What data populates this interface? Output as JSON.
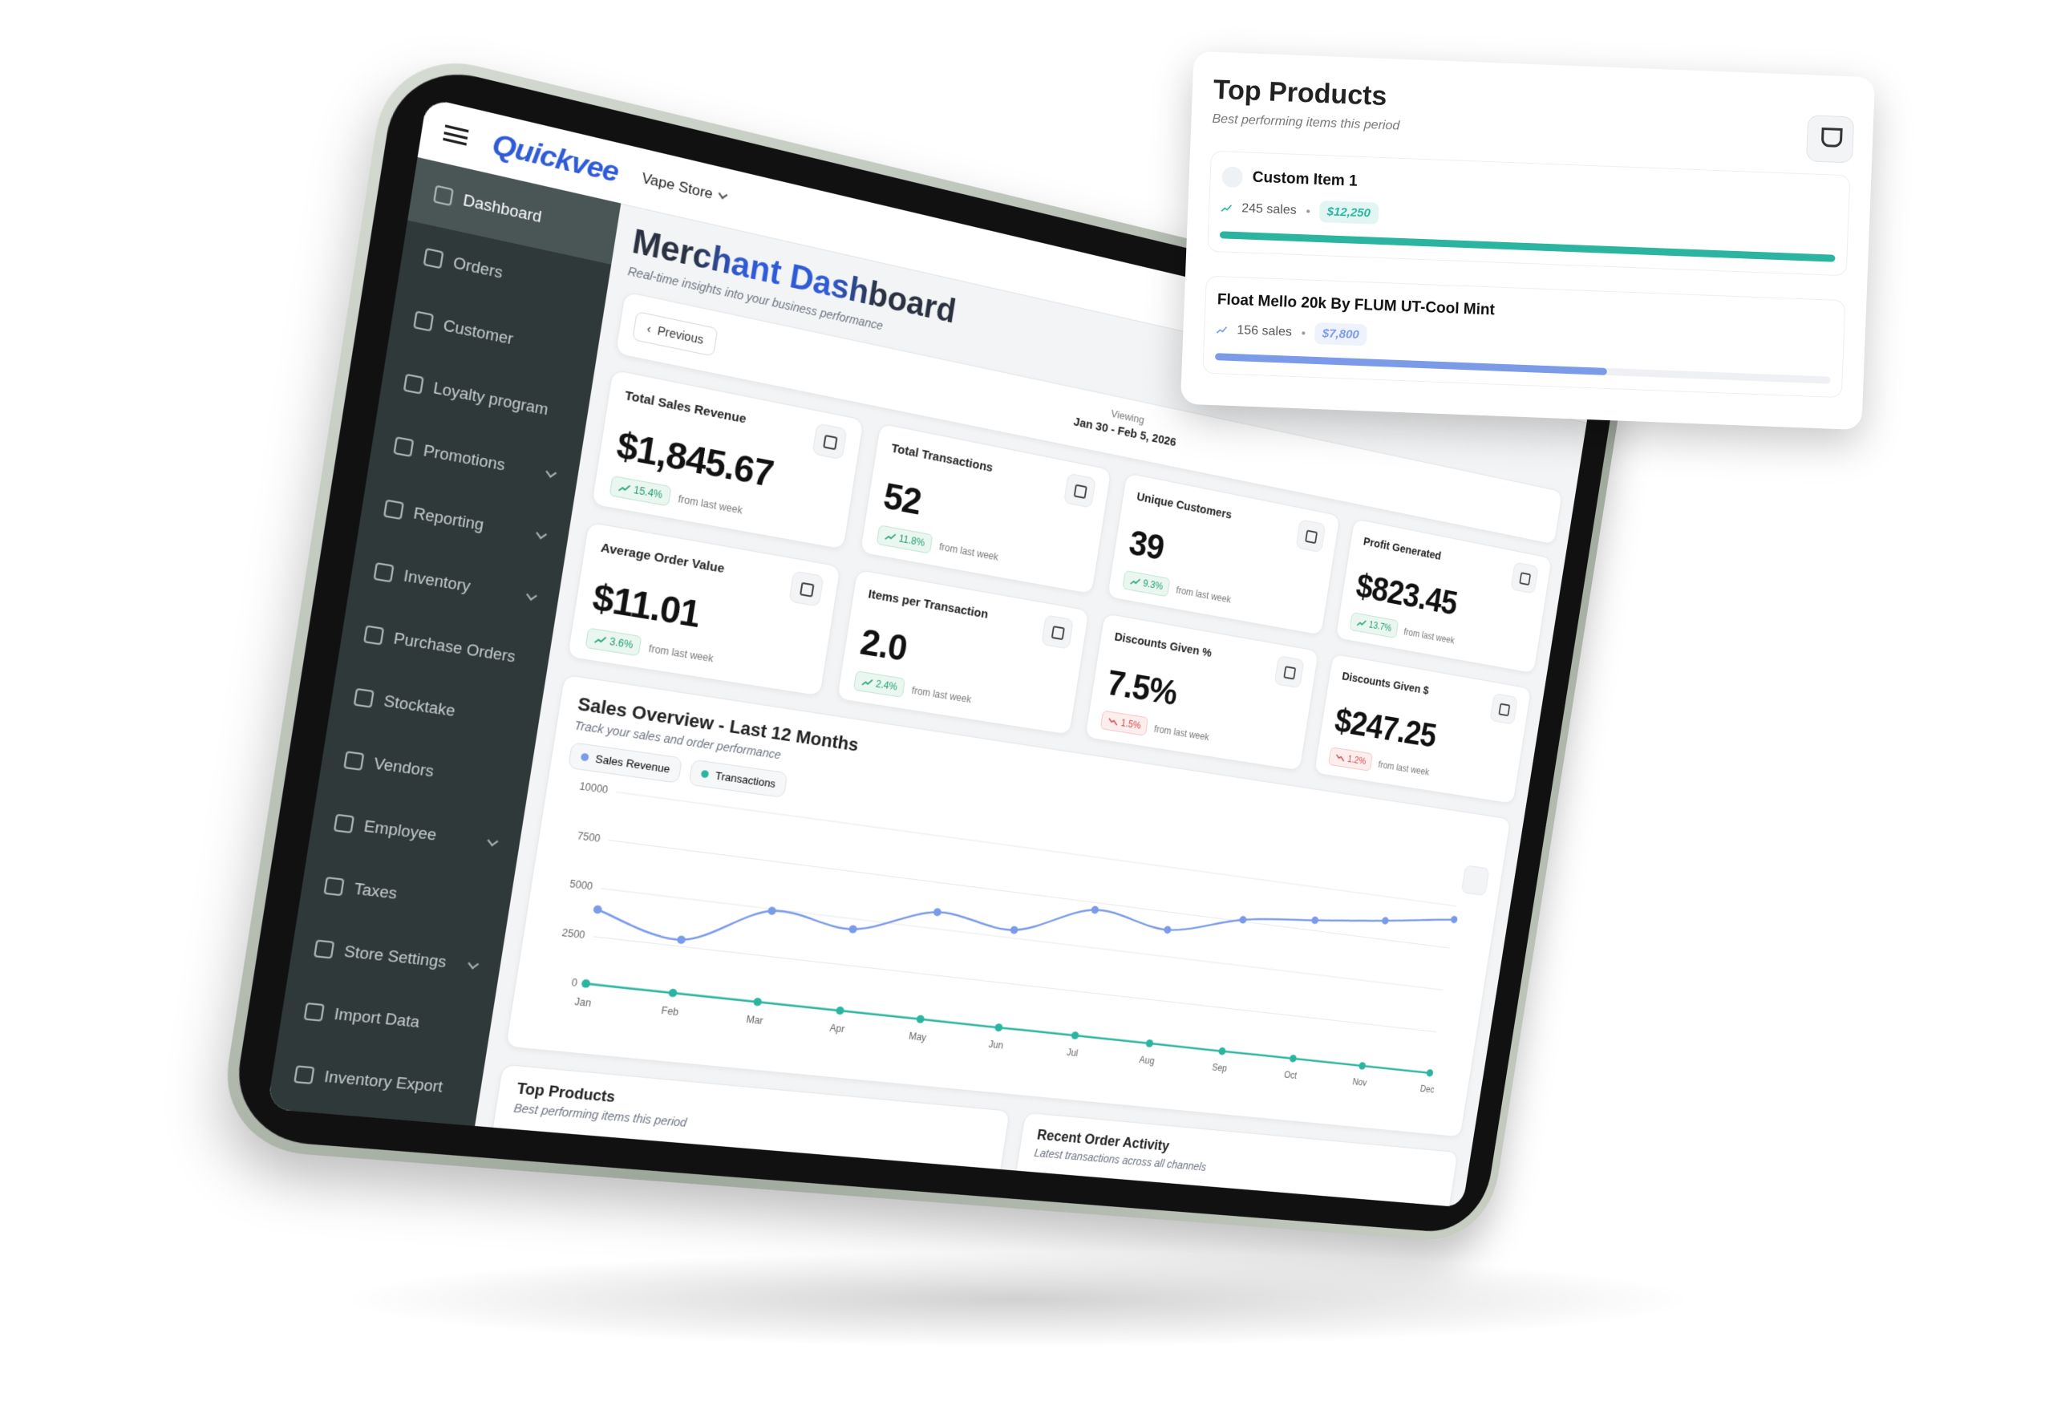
{
  "header": {
    "brand": "Quickvee",
    "store": "Vape Store"
  },
  "sidebar": {
    "items": [
      {
        "label": "Dashboard",
        "active": true
      },
      {
        "label": "Orders"
      },
      {
        "label": "Customer"
      },
      {
        "label": "Loyalty program"
      },
      {
        "label": "Promotions",
        "expandable": true
      },
      {
        "label": "Reporting",
        "expandable": true
      },
      {
        "label": "Inventory",
        "expandable": true
      },
      {
        "label": "Purchase Orders"
      },
      {
        "label": "Stocktake"
      },
      {
        "label": "Vendors"
      },
      {
        "label": "Employee",
        "expandable": true
      },
      {
        "label": "Taxes"
      },
      {
        "label": "Store Settings",
        "expandable": true
      },
      {
        "label": "Import Data"
      },
      {
        "label": "Inventory Export"
      }
    ]
  },
  "dashboard": {
    "title": "Merchant Dashboard",
    "subtitle": "Real-time insights into your business performance",
    "previous": "Previous",
    "viewing": "Viewing",
    "date_range": "Jan 30 - Feb 5, 2026"
  },
  "metrics": [
    {
      "label": "Total Sales Revenue",
      "value": "$1,845.67",
      "change": "15.4%",
      "trend": "up",
      "note": "from last week"
    },
    {
      "label": "Total Transactions",
      "value": "52",
      "change": "11.8%",
      "trend": "up",
      "note": "from last week"
    },
    {
      "label": "Unique Customers",
      "value": "39",
      "change": "9.3%",
      "trend": "up",
      "note": "from last week"
    },
    {
      "label": "Profit Generated",
      "value": "$823.45",
      "change": "13.7%",
      "trend": "up",
      "note": "from last week"
    },
    {
      "label": "Average Order Value",
      "value": "$11.01",
      "change": "3.6%",
      "trend": "up",
      "note": "from last week"
    },
    {
      "label": "Items per Transaction",
      "value": "2.0",
      "change": "2.4%",
      "trend": "up",
      "note": "from last week"
    },
    {
      "label": "Discounts Given %",
      "value": "7.5%",
      "change": "1.5%",
      "trend": "down",
      "note": "from last week"
    },
    {
      "label": "Discounts Given $",
      "value": "$247.25",
      "change": "1.2%",
      "trend": "down",
      "note": "from last week"
    }
  ],
  "sales_overview": {
    "title": "Sales Overview - Last 12 Months",
    "subtitle": "Track your sales and order performance",
    "categories": [
      "Jan",
      "Feb",
      "Mar",
      "Apr",
      "May",
      "Jun",
      "Jul",
      "Aug",
      "Sep",
      "Oct",
      "Nov",
      "Dec"
    ],
    "series": [
      {
        "name": "Sales Revenue",
        "color": "#7b9be8",
        "values": [
          3900,
          2850,
          4900,
          4450,
          5900,
          5450,
          7100,
          6500,
          7600,
          8100,
          8600,
          9200
        ]
      },
      {
        "name": "Transactions",
        "color": "#2bb5a0",
        "values": [
          60,
          55,
          58,
          52,
          50,
          48,
          55,
          50,
          47,
          52,
          50,
          52
        ]
      }
    ],
    "ylim": [
      0,
      10000
    ],
    "yticks": [
      0,
      2500,
      5000,
      7500,
      10000
    ]
  },
  "top_products_card": {
    "title": "Top Products",
    "subtitle": "Best performing items this period"
  },
  "recent_orders": {
    "title": "Recent Order Activity",
    "subtitle": "Latest transactions across all channels"
  },
  "top_products_popup": {
    "title": "Top Products",
    "subtitle": "Best performing items this period",
    "products": [
      {
        "name": "Custom Item 1",
        "sales": 245,
        "sales_label": "245 sales",
        "revenue": "$12,250",
        "color": "#2bb5a0"
      },
      {
        "name": "Float Mello 20k By FLUM UT-Cool Mint",
        "sales": 156,
        "sales_label": "156 sales",
        "revenue": "$7,800",
        "color": "#7b9be8"
      }
    ]
  }
}
